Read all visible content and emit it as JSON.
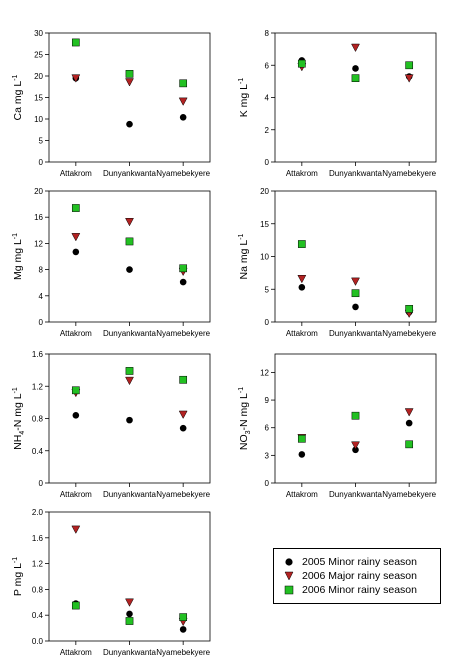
{
  "colors": {
    "2005_minor": "#000000",
    "2006_major": "#b22222",
    "2006_minor": "#22c022"
  },
  "legend": {
    "items": [
      {
        "label": "2005 Minor rainy season",
        "marker": "circle",
        "color": "#000000"
      },
      {
        "label": "2006 Major rainy season",
        "marker": "triangle-down",
        "color": "#b22222"
      },
      {
        "label": "2006 Minor rainy season",
        "marker": "square",
        "color": "#22c022"
      }
    ]
  },
  "chart_data": [
    {
      "type": "scatter",
      "ylabel_main": "Ca mg L",
      "ylabel_sub": "",
      "ylabel_sup": "-1",
      "categories": [
        "Attakrom",
        "Dunyankwanta",
        "Nyamebekyere"
      ],
      "ylim": [
        0,
        30
      ],
      "yticks": [
        "0",
        "5",
        "10",
        "15",
        "20",
        "25",
        "30"
      ],
      "series": [
        {
          "name": "2005 Minor rainy season",
          "values": [
            19.5,
            8.8,
            10.4
          ]
        },
        {
          "name": "2006 Major rainy season",
          "values": [
            19.5,
            18.6,
            14.1
          ]
        },
        {
          "name": "2006 Minor rainy season",
          "values": [
            27.8,
            20.5,
            18.3
          ]
        }
      ]
    },
    {
      "type": "scatter",
      "ylabel_main": "K mg L",
      "ylabel_sub": "",
      "ylabel_sup": "-1",
      "categories": [
        "Attakrom",
        "Dunyankwanta",
        "Nyamebekyere"
      ],
      "ylim": [
        0,
        8
      ],
      "yticks": [
        "0",
        "2",
        "4",
        "6",
        "8"
      ],
      "series": [
        {
          "name": "2005 Minor rainy season",
          "values": [
            6.3,
            5.8,
            5.3
          ]
        },
        {
          "name": "2006 Major rainy season",
          "values": [
            5.9,
            7.1,
            5.2
          ]
        },
        {
          "name": "2006 Minor rainy season",
          "values": [
            6.1,
            5.2,
            6.0
          ]
        }
      ]
    },
    {
      "type": "scatter",
      "ylabel_main": "Mg mg L",
      "ylabel_sub": "",
      "ylabel_sup": "-1",
      "categories": [
        "Attakrom",
        "Dunyankwanta",
        "Nyamebekyere"
      ],
      "ylim": [
        0,
        20
      ],
      "yticks": [
        "0",
        "4",
        "8",
        "12",
        "16",
        "20"
      ],
      "series": [
        {
          "name": "2005 Minor rainy season",
          "values": [
            10.7,
            8.0,
            6.1
          ]
        },
        {
          "name": "2006 Major rainy season",
          "values": [
            13.0,
            15.3,
            7.7
          ]
        },
        {
          "name": "2006 Minor rainy season",
          "values": [
            17.4,
            12.3,
            8.2
          ]
        }
      ]
    },
    {
      "type": "scatter",
      "ylabel_main": "Na mg L",
      "ylabel_sub": "",
      "ylabel_sup": "-1",
      "categories": [
        "Attakrom",
        "Dunyankwanta",
        "Nyamebekyere"
      ],
      "ylim": [
        0,
        20
      ],
      "yticks": [
        "0",
        "5",
        "10",
        "15",
        "20"
      ],
      "series": [
        {
          "name": "2005 Minor rainy season",
          "values": [
            5.3,
            2.3,
            1.5
          ]
        },
        {
          "name": "2006 Major rainy season",
          "values": [
            6.6,
            6.2,
            1.3
          ]
        },
        {
          "name": "2006 Minor rainy season",
          "values": [
            11.9,
            4.4,
            2.0
          ]
        }
      ]
    },
    {
      "type": "scatter",
      "ylabel_main": "NH",
      "ylabel_sub": "4",
      "ylabel_tail": "-N mg L",
      "ylabel_sup": "-1",
      "categories": [
        "Attakrom",
        "Dunyankwanta",
        "Nyamebekyere"
      ],
      "ylim": [
        0,
        1.6
      ],
      "yticks": [
        "0",
        "0.4",
        "0.8",
        "1.2",
        "1.6"
      ],
      "series": [
        {
          "name": "2005 Minor rainy season",
          "values": [
            0.84,
            0.78,
            0.68
          ]
        },
        {
          "name": "2006 Major rainy season",
          "values": [
            1.12,
            1.27,
            0.85
          ]
        },
        {
          "name": "2006 Minor rainy season",
          "values": [
            1.15,
            1.39,
            1.28
          ]
        }
      ]
    },
    {
      "type": "scatter",
      "ylabel_main": "NO",
      "ylabel_sub": "3",
      "ylabel_tail": "-N mg L",
      "ylabel_sup": "-1",
      "categories": [
        "Attakrom",
        "Dunyankwanta",
        "Nyamebekyere"
      ],
      "ylim": [
        0,
        14
      ],
      "yticks": [
        "0",
        "3",
        "6",
        "9",
        "12"
      ],
      "series": [
        {
          "name": "2005 Minor rainy season",
          "values": [
            3.1,
            3.6,
            6.5
          ]
        },
        {
          "name": "2006 Major rainy season",
          "values": [
            4.9,
            4.1,
            7.7
          ]
        },
        {
          "name": "2006 Minor rainy season",
          "values": [
            4.8,
            7.3,
            4.2
          ]
        }
      ]
    },
    {
      "type": "scatter",
      "ylabel_main": "P mg L",
      "ylabel_sub": "",
      "ylabel_sup": "-1",
      "categories": [
        "Attakrom",
        "Dunyankwanta",
        "Nyamebekyere"
      ],
      "ylim": [
        0,
        2.0
      ],
      "yticks": [
        "0.0",
        "0.4",
        "0.8",
        "1.2",
        "1.6",
        "2.0"
      ],
      "series": [
        {
          "name": "2005 Minor rainy season",
          "values": [
            0.58,
            0.42,
            0.18
          ]
        },
        {
          "name": "2006 Major rainy season",
          "values": [
            1.73,
            0.6,
            0.3
          ]
        },
        {
          "name": "2006 Minor rainy season",
          "values": [
            0.55,
            0.31,
            0.37
          ]
        }
      ]
    }
  ]
}
